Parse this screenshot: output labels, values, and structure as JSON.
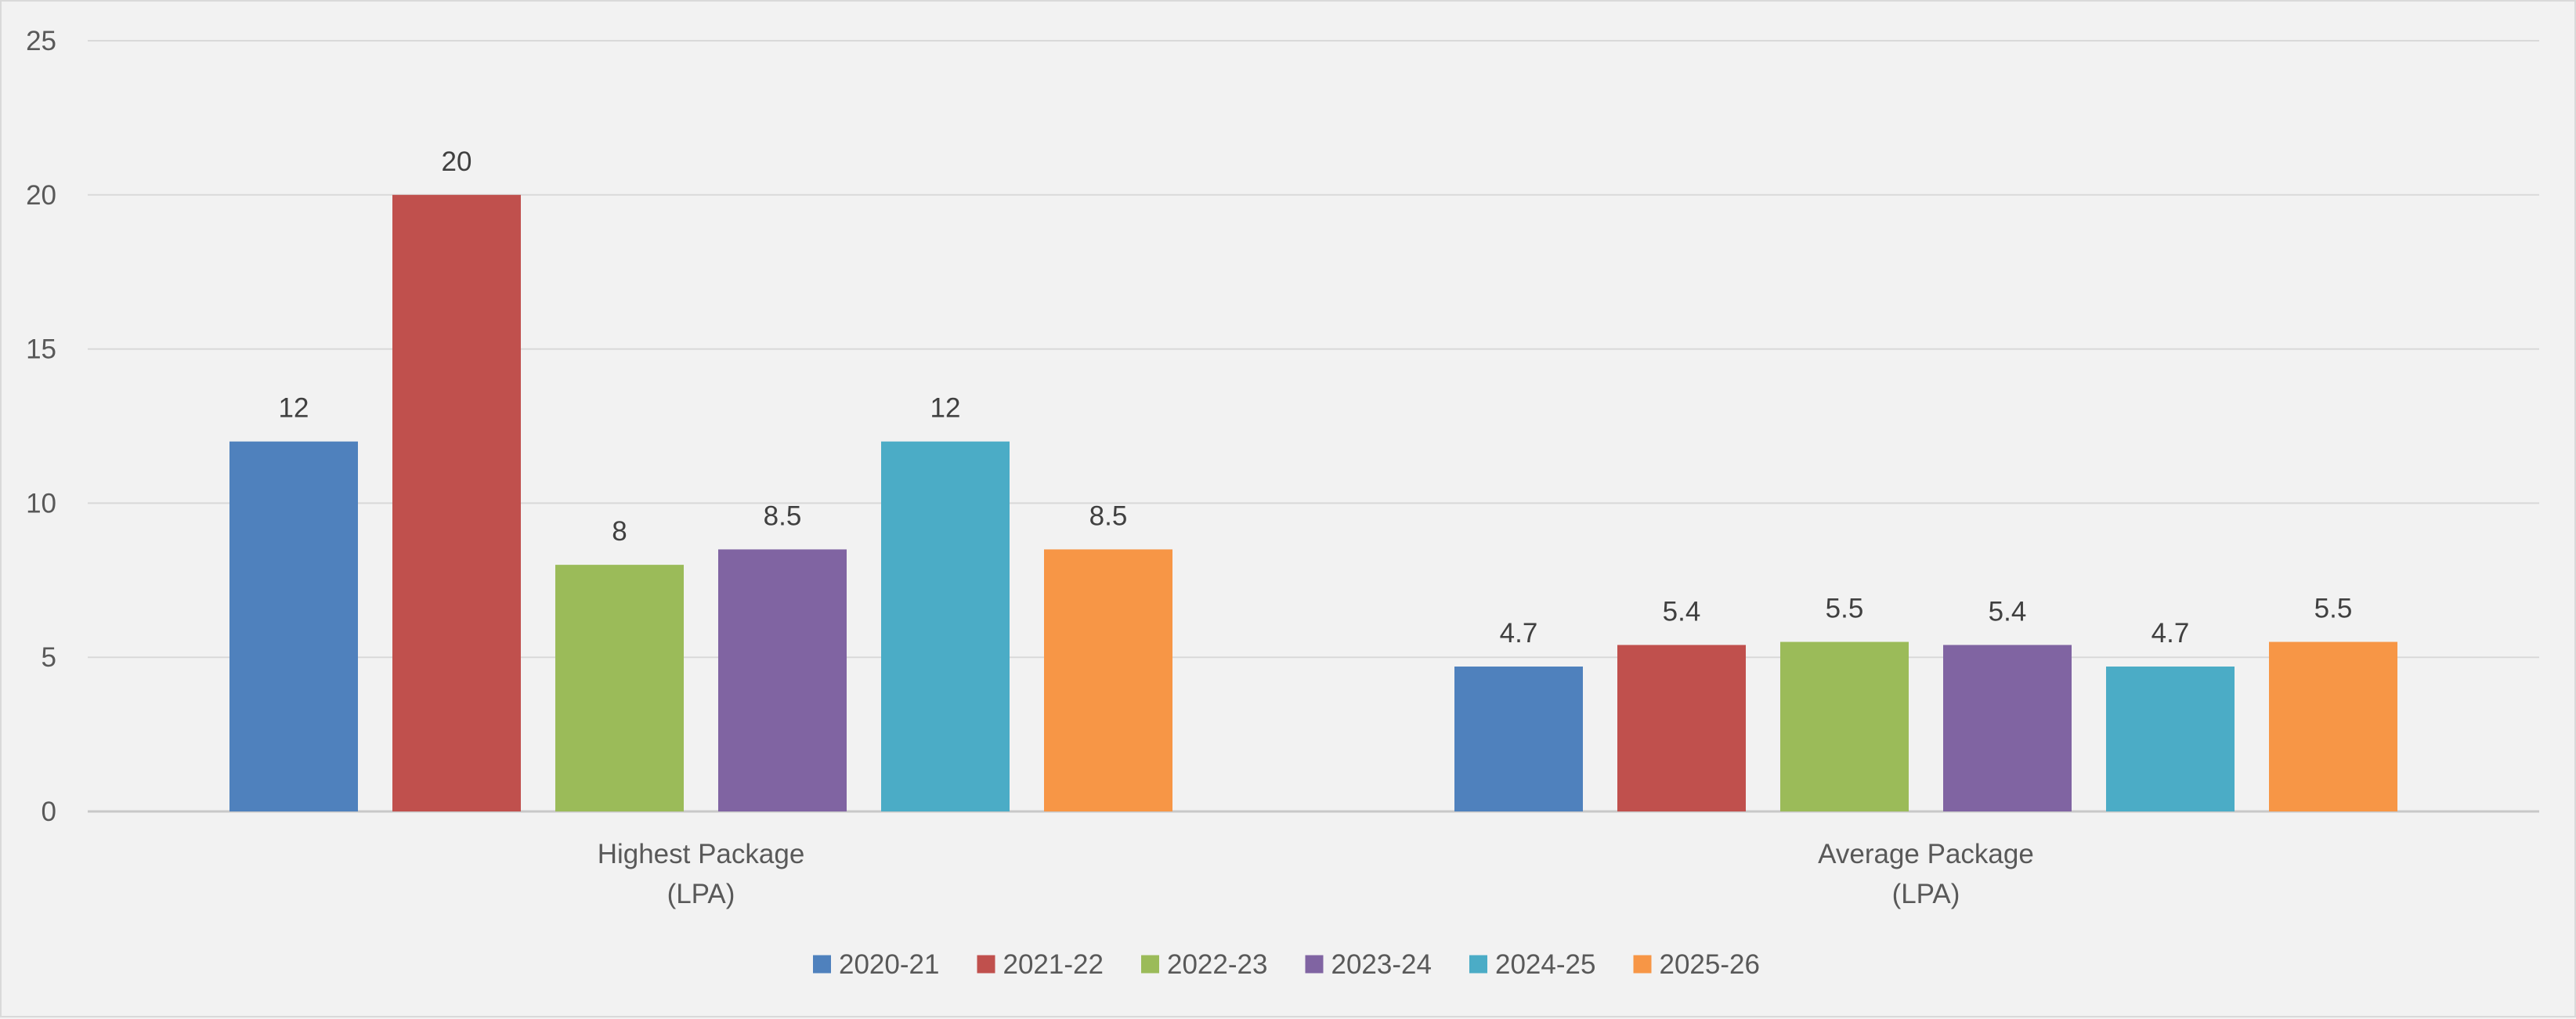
{
  "chart_data": {
    "type": "bar",
    "title": "",
    "xlabel": "",
    "ylabel": "",
    "ylim": [
      0,
      25
    ],
    "yticks": [
      0,
      5,
      10,
      15,
      20,
      25
    ],
    "grid": true,
    "legend_position": "bottom-center",
    "categories": [
      [
        "Highest Package",
        "(LPA)"
      ],
      [
        "Average Package",
        "(LPA)"
      ]
    ],
    "series": [
      {
        "name": "2020-21",
        "color": "#4f81bd",
        "values": [
          12,
          4.7
        ]
      },
      {
        "name": "2021-22",
        "color": "#c0504d",
        "values": [
          20,
          5.4
        ]
      },
      {
        "name": "2022-23",
        "color": "#9bbb59",
        "values": [
          8,
          5.5
        ]
      },
      {
        "name": "2023-24",
        "color": "#8064a2",
        "values": [
          8.5,
          5.4
        ]
      },
      {
        "name": "2024-25",
        "color": "#4bacc6",
        "values": [
          12,
          4.7
        ]
      },
      {
        "name": "2025-26",
        "color": "#f79646",
        "values": [
          8.5,
          5.5
        ]
      }
    ]
  }
}
